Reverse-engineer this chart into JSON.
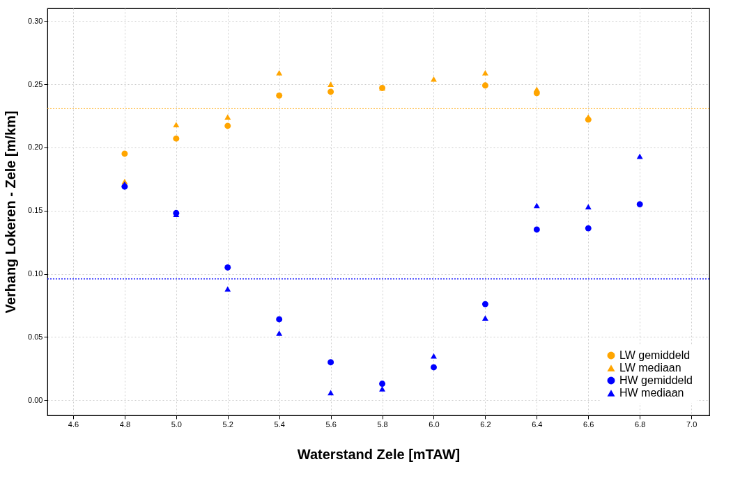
{
  "chart_data": {
    "type": "scatter",
    "xlabel": "Waterstand Zele [mTAW]",
    "ylabel": "Verhang Lokeren - Zele [m/km]",
    "xlim": [
      4.5,
      7.07
    ],
    "ylim": [
      -0.012,
      0.31
    ],
    "xticks": [
      {
        "value": 4.6,
        "label": "4.6"
      },
      {
        "value": 4.8,
        "label": "4.8"
      },
      {
        "value": 5.0,
        "label": "5.0"
      },
      {
        "value": 5.2,
        "label": "5.2"
      },
      {
        "value": 5.4,
        "label": "5.4"
      },
      {
        "value": 5.6,
        "label": "5.6"
      },
      {
        "value": 5.8,
        "label": "5.8"
      },
      {
        "value": 6.0,
        "label": "6.0"
      },
      {
        "value": 6.2,
        "label": "6.2"
      },
      {
        "value": 6.4,
        "label": "6.4"
      },
      {
        "value": 6.6,
        "label": "6.6"
      },
      {
        "value": 6.8,
        "label": "6.8"
      },
      {
        "value": 7.0,
        "label": "7.0"
      }
    ],
    "yticks": [
      {
        "value": 0,
        "label": "0.00"
      },
      {
        "value": 0.05,
        "label": "0.05"
      },
      {
        "value": 0.1,
        "label": "0.10"
      },
      {
        "value": 0.15,
        "label": "0.15"
      },
      {
        "value": 0.2,
        "label": "0.20"
      },
      {
        "value": 0.25,
        "label": "0.25"
      },
      {
        "value": 0.3,
        "label": "0.30"
      }
    ],
    "grid": true,
    "legend": "bottom right",
    "series": [
      {
        "name": "LW gemiddeld",
        "color": "#ffa500",
        "marker": "circle",
        "x": [
          4.8,
          5.0,
          5.2,
          5.4,
          5.6,
          5.8,
          6.0,
          6.2,
          6.4,
          6.6
        ],
        "values": [
          0.195,
          0.207,
          0.217,
          0.241,
          0.244,
          0.247,
          null,
          0.249,
          0.243,
          0.222
        ]
      },
      {
        "name": "LW mediaan",
        "color": "#ffa500",
        "marker": "triangle",
        "x": [
          4.8,
          5.0,
          5.2,
          5.4,
          5.6,
          5.8,
          6.0,
          6.2,
          6.4,
          6.6
        ],
        "values": [
          0.173,
          0.218,
          0.224,
          0.259,
          0.25,
          0.247,
          0.254,
          0.259,
          0.246,
          0.224
        ]
      },
      {
        "name": "HW gemiddeld",
        "color": "#0000ff",
        "marker": "circle",
        "x": [
          4.8,
          5.0,
          5.2,
          5.4,
          5.6,
          5.8,
          6.0,
          6.2,
          6.4,
          6.6,
          6.8
        ],
        "values": [
          0.169,
          0.148,
          0.105,
          0.064,
          0.03,
          0.013,
          0.026,
          0.076,
          0.135,
          0.136,
          0.155
        ]
      },
      {
        "name": "HW mediaan",
        "color": "#0000ff",
        "marker": "triangle",
        "x": [
          4.8,
          5.0,
          5.2,
          5.4,
          5.6,
          5.8,
          6.0,
          6.2,
          6.4,
          6.6,
          6.8
        ],
        "values": [
          0.171,
          0.147,
          0.088,
          0.053,
          0.006,
          0.009,
          0.035,
          0.065,
          0.154,
          0.153,
          0.193
        ]
      }
    ],
    "ref_lines": [
      {
        "axis": "y",
        "value": 0.231,
        "color": "#ffa500",
        "line_style": "dotted"
      },
      {
        "axis": "y",
        "value": 0.096,
        "color": "#0000ff",
        "line_style": "dotted"
      }
    ]
  }
}
